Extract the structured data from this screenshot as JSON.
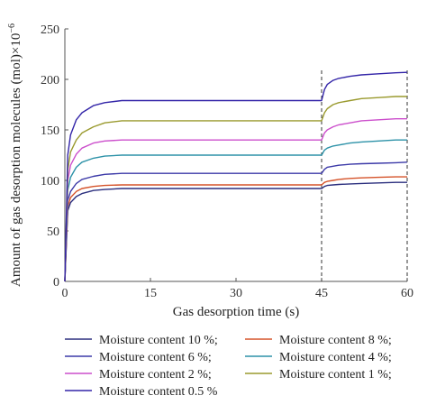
{
  "chart_data": {
    "type": "line",
    "xlabel": "Gas desorption time (s)",
    "ylabel": "Amount of gas desorption molecules (mol)×10",
    "ylabel_exponent": "−6",
    "xlim": [
      0,
      60
    ],
    "ylim": [
      0,
      250
    ],
    "xticks": [
      0,
      15,
      30,
      45,
      60
    ],
    "yticks": [
      0,
      50,
      100,
      150,
      200,
      250
    ],
    "xtick_labels": [
      "0",
      "15",
      "30",
      "45",
      "60"
    ],
    "ytick_labels": [
      "0",
      "50",
      "100",
      "150",
      "200",
      "250"
    ],
    "grid": false,
    "legend_position": "bottom",
    "vertical_markers": [
      45,
      60
    ],
    "x": [
      0,
      0.5,
      1,
      2,
      3,
      5,
      7,
      10,
      20,
      30,
      40,
      44.9,
      45,
      45.5,
      46,
      47,
      48,
      50,
      52,
      55,
      58,
      60
    ],
    "series": [
      {
        "name": "Moisture content 10 %;",
        "color": "#2b2f7e",
        "values": [
          0,
          70,
          78,
          84,
          87,
          90,
          91,
          92,
          92,
          92,
          92,
          92,
          92,
          94,
          95,
          95.5,
          96,
          96.5,
          97,
          97.5,
          98,
          98
        ]
      },
      {
        "name": "Moisture content 8 %;",
        "color": "#d5532a",
        "values": [
          0,
          74,
          83,
          89,
          92,
          94,
          95,
          95.5,
          95.5,
          95.5,
          95.5,
          95.5,
          95.5,
          98,
          99,
          100,
          101,
          102,
          102.5,
          103,
          103.5,
          103.5
        ]
      },
      {
        "name": "Moisture content 6 %;",
        "color": "#3c3aa8",
        "values": [
          0,
          80,
          89,
          97,
          101,
          104,
          106,
          107,
          107,
          107,
          107,
          107,
          107,
          111,
          113,
          114,
          115,
          116,
          116.5,
          117,
          117.5,
          118
        ]
      },
      {
        "name": "Moisture content 4 %;",
        "color": "#2d92a8",
        "values": [
          0,
          90,
          103,
          113,
          118,
          122,
          124,
          125,
          125,
          125,
          125,
          125,
          125,
          130,
          132,
          134,
          135,
          137,
          138,
          139,
          140,
          140
        ]
      },
      {
        "name": "Moisture content 2 %;",
        "color": "#cc4fcc",
        "values": [
          0,
          100,
          115,
          126,
          132,
          137,
          139,
          140,
          140,
          140,
          140,
          140,
          140,
          147,
          150,
          153,
          155,
          157,
          159,
          160,
          161,
          161
        ]
      },
      {
        "name": "Moisture content 1 %;",
        "color": "#9a9a2e",
        "values": [
          0,
          110,
          128,
          140,
          147,
          153,
          157,
          159,
          159,
          159,
          159,
          159,
          159,
          167,
          171,
          175,
          177,
          179,
          181,
          182,
          183,
          183
        ]
      },
      {
        "name": "Moisture content 0.5 %",
        "color": "#3325a8",
        "values": [
          0,
          125,
          145,
          160,
          167,
          174,
          177,
          179,
          179,
          179,
          179,
          179,
          179,
          190,
          195,
          199,
          201,
          203,
          204.5,
          205.5,
          206.5,
          207
        ]
      }
    ]
  }
}
